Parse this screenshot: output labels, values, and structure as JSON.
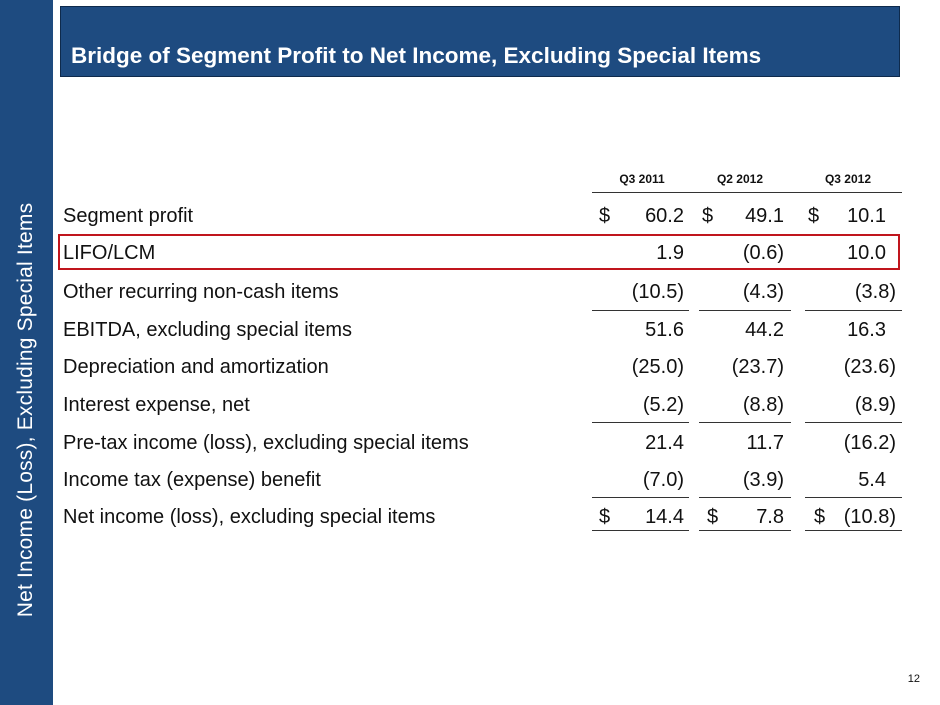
{
  "side_title": "Net Income (Loss), Excluding Special Items",
  "title": "Bridge of Segment Profit to Net Income, Excluding Special Items",
  "columns": [
    "Q3 2011",
    "Q2 2012",
    "Q3 2012"
  ],
  "rows": [
    {
      "label": "Segment profit",
      "values": [
        "60.2",
        "49.1",
        "10.1"
      ],
      "dollars": [
        "$",
        "$",
        "$"
      ]
    },
    {
      "label": "LIFO/LCM",
      "values": [
        "1.9",
        "(0.6)",
        "10.0"
      ]
    },
    {
      "label": "Other recurring non-cash items",
      "values": [
        "(10.5)",
        "(4.3)",
        "(3.8)"
      ]
    },
    {
      "label": "EBITDA, excluding special items",
      "values": [
        "51.6",
        "44.2",
        "16.3"
      ]
    },
    {
      "label": "Depreciation and amortization",
      "values": [
        "(25.0)",
        "(23.7)",
        "(23.6)"
      ]
    },
    {
      "label": "Interest expense, net",
      "values": [
        "(5.2)",
        "(8.8)",
        "(8.9)"
      ]
    },
    {
      "label": "Pre-tax income (loss), excluding special items",
      "values": [
        "21.4",
        "11.7",
        "(16.2)"
      ]
    },
    {
      "label": "Income tax (expense) benefit",
      "values": [
        "(7.0)",
        "(3.9)",
        "5.4"
      ]
    },
    {
      "label": "Net income (loss), excluding special items",
      "values": [
        "14.4",
        "7.8",
        "(10.8)"
      ],
      "dollars": [
        "$",
        "$",
        "$"
      ]
    }
  ],
  "page_number": "12",
  "colors": {
    "brand": "#1e4b80",
    "highlight": "#c0151d"
  }
}
